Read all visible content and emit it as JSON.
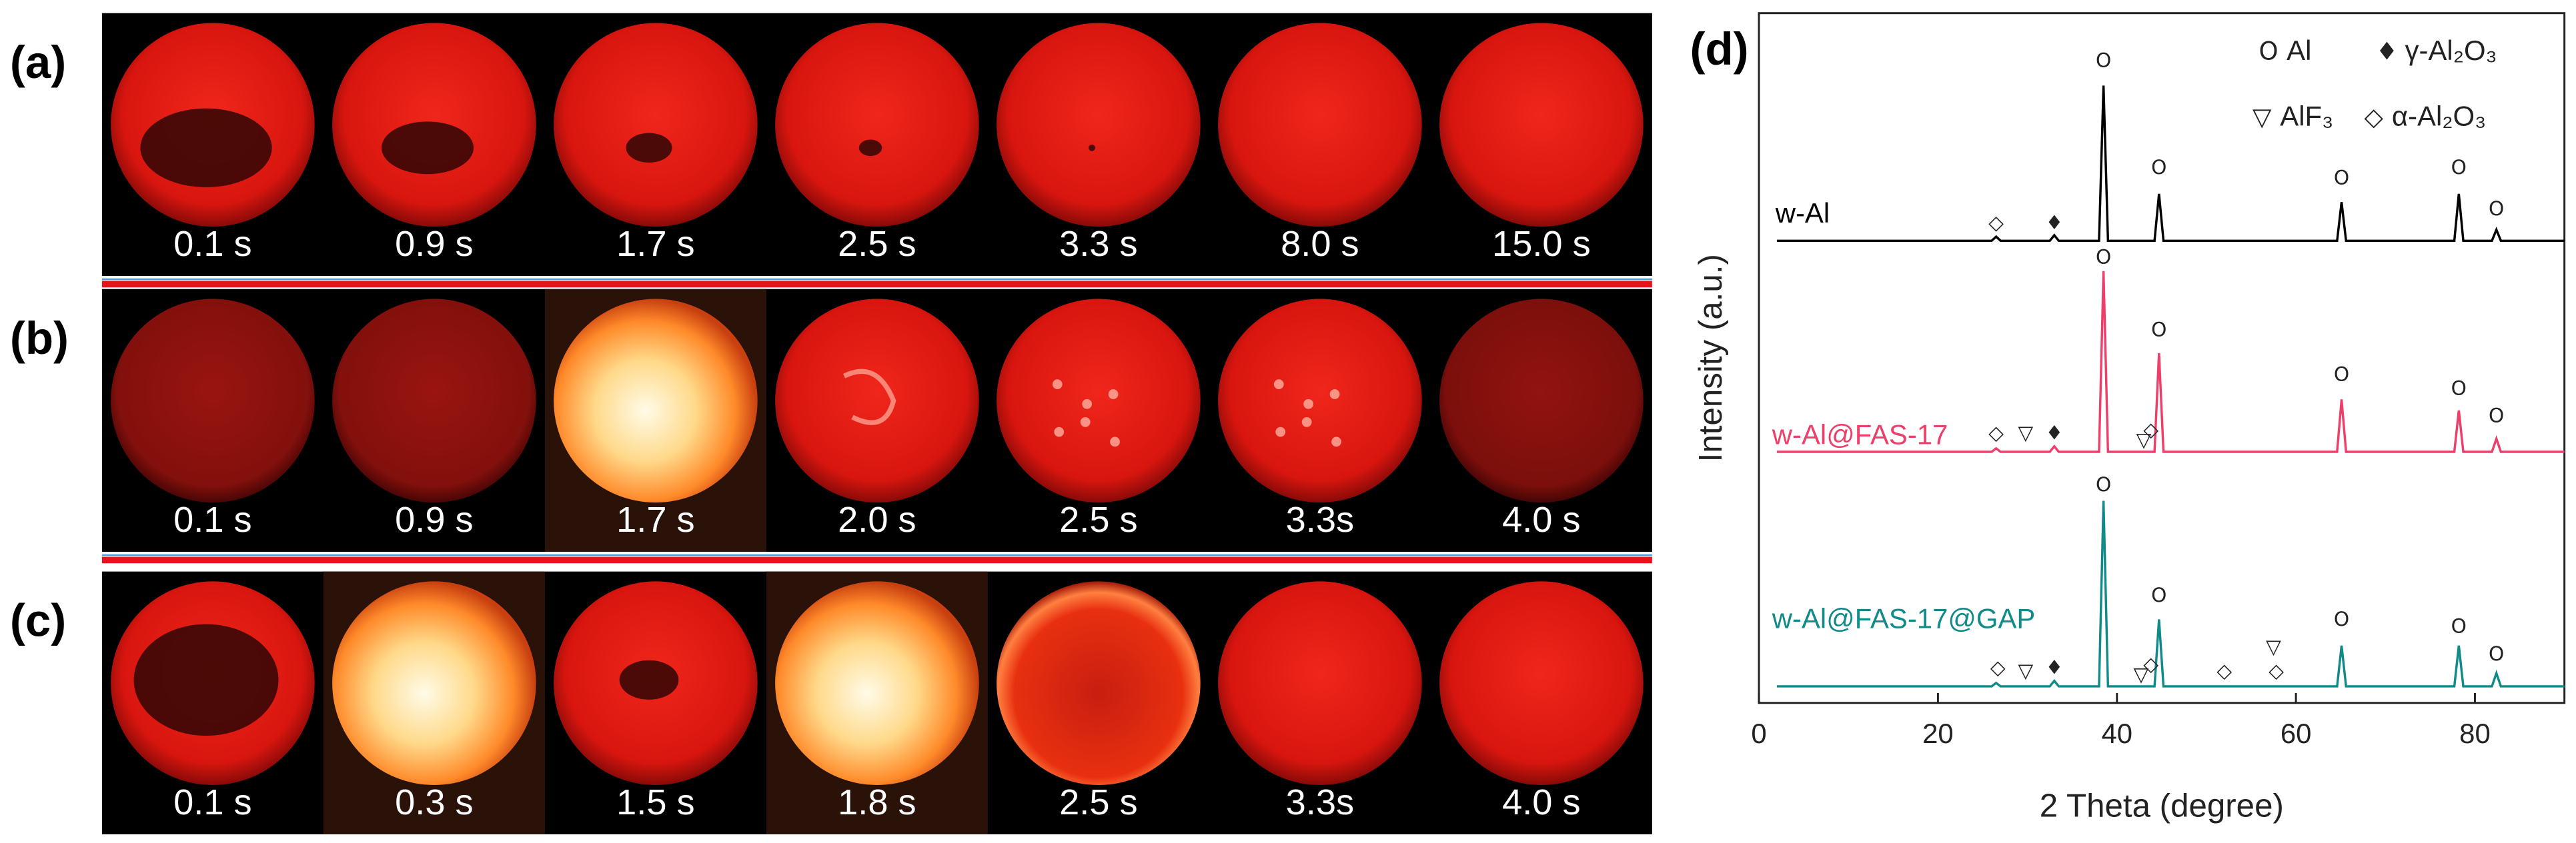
{
  "panels": [
    {
      "label": "(a)",
      "times": [
        "0.1 s",
        "0.9 s",
        "1.7 s",
        "2.5 s",
        "3.3 s",
        "8.0 s",
        "15.0 s"
      ]
    },
    {
      "label": "(b)",
      "times": [
        "0.1 s",
        "0.9 s",
        "1.7 s",
        "2.0 s",
        "2.5 s",
        "3.3s",
        "4.0 s"
      ]
    },
    {
      "label": "(c)",
      "times": [
        "0.1 s",
        "0.3 s",
        "1.5 s",
        "1.8 s",
        "2.5 s",
        "3.3s",
        "4.0 s"
      ]
    }
  ],
  "chart_data": {
    "type": "line",
    "label": "(d)",
    "x_label": "2 Theta (degree)",
    "y_label": "Intensity (a.u.)",
    "x": [
      2,
      26,
      26.5,
      27,
      32.5,
      33,
      33.5,
      38,
      38.5,
      39,
      44.2,
      44.7,
      45.2,
      64.6,
      65.1,
      65.6,
      77.7,
      78.2,
      78.7,
      81.9,
      82.4,
      82.9,
      90
    ],
    "series": [
      {
        "name": "w-Al",
        "color": "#000000",
        "values": [
          67,
          67,
          67.6,
          67,
          67,
          67.8,
          67,
          67,
          89.5,
          67,
          67,
          73.8,
          67,
          67,
          72.6,
          67,
          67,
          73.8,
          67,
          67,
          68.6,
          67,
          67
        ]
      },
      {
        "name": "w-Al@FAS-17",
        "color": "#ee3f6a",
        "values": [
          36.4,
          36.4,
          36.9,
          36.4,
          36.4,
          37.2,
          36.4,
          36.4,
          62.6,
          36.4,
          36.4,
          50.7,
          36.4,
          36.4,
          44,
          36.4,
          36.4,
          42.4,
          36.4,
          36.4,
          38.3,
          36.4,
          36.4
        ]
      },
      {
        "name": "w-Al@FAS-17@GAP",
        "color": "#118a8a",
        "values": [
          2.4,
          2.4,
          2.9,
          2.4,
          2.4,
          3.2,
          2.4,
          2.4,
          29.3,
          2.4,
          2.4,
          12.1,
          2.4,
          2.4,
          8.3,
          2.4,
          2.4,
          8.3,
          2.4,
          2.4,
          4.3,
          2.4,
          2.4
        ]
      }
    ],
    "xlim": [
      0,
      90
    ],
    "ylim": [
      0,
      100
    ],
    "xticks": [
      0,
      20,
      40,
      60,
      80
    ],
    "legend": [
      {
        "symbol": "O",
        "text": "Al"
      },
      {
        "symbol": "♦",
        "text": "γ-Al₂O₃"
      },
      {
        "symbol": "▽",
        "text": "AlF₃"
      },
      {
        "symbol": "◇",
        "text": "α-Al₂O₃"
      }
    ],
    "annotations": [
      {
        "text": "O",
        "x": 38.5,
        "y": 93
      },
      {
        "text": "O",
        "x": 44.7,
        "y": 77.5
      },
      {
        "text": "O",
        "x": 65.1,
        "y": 76
      },
      {
        "text": "O",
        "x": 78.2,
        "y": 77.5
      },
      {
        "text": "O",
        "x": 82.4,
        "y": 71.5
      },
      {
        "text": "◇",
        "x": 26.5,
        "y": 69.5
      },
      {
        "text": "♦",
        "x": 33,
        "y": 69.5
      },
      {
        "text": "O",
        "x": 38.5,
        "y": 64.5
      },
      {
        "text": "O",
        "x": 44.7,
        "y": 54
      },
      {
        "text": "O",
        "x": 65.1,
        "y": 47.5
      },
      {
        "text": "O",
        "x": 78.2,
        "y": 45.5
      },
      {
        "text": "O",
        "x": 82.4,
        "y": 41.5
      },
      {
        "text": "◇",
        "x": 26.5,
        "y": 39
      },
      {
        "text": "▽",
        "x": 29.8,
        "y": 39
      },
      {
        "text": "♦",
        "x": 33,
        "y": 39
      },
      {
        "text": "▽",
        "x": 43,
        "y": 38
      },
      {
        "text": "◇",
        "x": 43.8,
        "y": 39.5
      },
      {
        "text": "O",
        "x": 38.5,
        "y": 31.5
      },
      {
        "text": "O",
        "x": 44.7,
        "y": 15.5
      },
      {
        "text": "O",
        "x": 65.1,
        "y": 12
      },
      {
        "text": "O",
        "x": 78.2,
        "y": 11
      },
      {
        "text": "O",
        "x": 82.4,
        "y": 7
      },
      {
        "text": "◇",
        "x": 26.7,
        "y": 5
      },
      {
        "text": "▽",
        "x": 29.8,
        "y": 4.5
      },
      {
        "text": "♦",
        "x": 33,
        "y": 5
      },
      {
        "text": "▽",
        "x": 42.7,
        "y": 4
      },
      {
        "text": "◇",
        "x": 43.8,
        "y": 5.5
      },
      {
        "text": "◇",
        "x": 52,
        "y": 4.5
      },
      {
        "text": "▽",
        "x": 57.5,
        "y": 8
      },
      {
        "text": "◇",
        "x": 57.8,
        "y": 4.5
      }
    ]
  }
}
